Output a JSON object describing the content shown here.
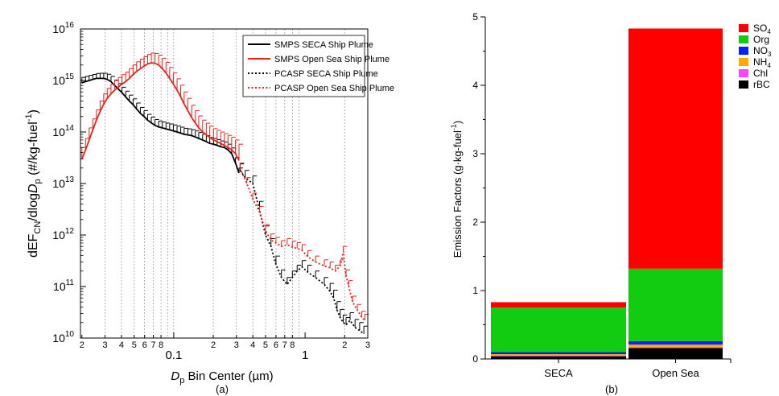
{
  "chart_data": [
    {
      "type": "line",
      "panel_label": "(a)",
      "xlabel_var": "D",
      "xlabel_sub": "p",
      "xlabel_rest": " Bin Center (µm)",
      "ylabel_pre": "dEF",
      "ylabel_sub1": "CN",
      "ylabel_mid": "/dlog",
      "ylabel_var": "D",
      "ylabel_sub2": "p",
      "ylabel_post": " (#/kg-fuel",
      "ylabel_sup": "-1",
      "ylabel_close": ")",
      "xscale": "log",
      "yscale": "log",
      "xlim": [
        0.0195,
        3.0
      ],
      "ylim": [
        10000000000.0,
        1e+16
      ],
      "x_ticks": [
        {
          "v": 0.02,
          "label": "2"
        },
        {
          "v": 0.03,
          "label": "3"
        },
        {
          "v": 0.04,
          "label": "4"
        },
        {
          "v": 0.05,
          "label": "5"
        },
        {
          "v": 0.06,
          "label": "6"
        },
        {
          "v": 0.07,
          "label": "7"
        },
        {
          "v": 0.08,
          "label": "8"
        },
        {
          "v": 0.1,
          "label": "0.1"
        },
        {
          "v": 0.2,
          "label": "2"
        },
        {
          "v": 0.3,
          "label": "3"
        },
        {
          "v": 0.4,
          "label": "4"
        },
        {
          "v": 0.5,
          "label": "5"
        },
        {
          "v": 0.6,
          "label": "6"
        },
        {
          "v": 0.7,
          "label": "7"
        },
        {
          "v": 0.8,
          "label": "8"
        },
        {
          "v": 1.0,
          "label": "1"
        },
        {
          "v": 2.0,
          "label": "2"
        },
        {
          "v": 3.0,
          "label": "3"
        }
      ],
      "y_ticks": [
        {
          "exp": 10,
          "base": "10",
          "sup": "10"
        },
        {
          "exp": 11,
          "base": "10",
          "sup": "11"
        },
        {
          "exp": 12,
          "base": "10",
          "sup": "12"
        },
        {
          "exp": 13,
          "base": "10",
          "sup": "13"
        },
        {
          "exp": 14,
          "base": "10",
          "sup": "14"
        },
        {
          "exp": 15,
          "base": "10",
          "sup": "15"
        },
        {
          "exp": 16,
          "base": "10",
          "sup": "16"
        }
      ],
      "gridlines_x": [
        0.03,
        0.04,
        0.05,
        0.06,
        0.07,
        0.08,
        0.09,
        0.1,
        0.2,
        0.3,
        0.4,
        0.5,
        0.6,
        0.7,
        0.8,
        0.9,
        2.0
      ],
      "legend_placement": "top-right",
      "series": [
        {
          "name": "SMPS SECA Ship Plume",
          "color": "#000000",
          "dash": "solid",
          "x": [
            0.02,
            0.0213,
            0.0227,
            0.0242,
            0.0258,
            0.0275,
            0.0293,
            0.0312,
            0.0333,
            0.0355,
            0.0379,
            0.0404,
            0.0431,
            0.0459,
            0.049,
            0.0522,
            0.0557,
            0.0594,
            0.0633,
            0.0675,
            0.072,
            0.0768,
            0.0819,
            0.0873,
            0.0931,
            0.0993,
            0.106,
            0.113,
            0.12,
            0.128,
            0.137,
            0.146,
            0.155,
            0.166,
            0.177,
            0.188,
            0.201,
            0.214,
            0.228,
            0.243,
            0.259,
            0.276,
            0.295,
            0.314
          ],
          "y": [
            900000000000000.0,
            950000000000000.0,
            1000000000000000.0,
            1050000000000000.0,
            1100000000000000.0,
            1100000000000000.0,
            1100000000000000.0,
            1050000000000000.0,
            950000000000000.0,
            800000000000000.0,
            680000000000000.0,
            580000000000000.0,
            480000000000000.0,
            400000000000000.0,
            340000000000000.0,
            280000000000000.0,
            230000000000000.0,
            200000000000000.0,
            170000000000000.0,
            150000000000000.0,
            135000000000000.0,
            125000000000000.0,
            120000000000000.0,
            115000000000000.0,
            110000000000000.0,
            105000000000000.0,
            100000000000000.0,
            95000000000000.0,
            90000000000000.0,
            88000000000000.0,
            85000000000000.0,
            80000000000000.0,
            75000000000000.0,
            70000000000000.0,
            65000000000000.0,
            60000000000000.0,
            58000000000000.0,
            55000000000000.0,
            52000000000000.0,
            50000000000000.0,
            45000000000000.0,
            38000000000000.0,
            25000000000000.0,
            16000000000000.0
          ],
          "err": [
            250000000000000.0,
            250000000000000.0,
            260000000000000.0,
            260000000000000.0,
            270000000000000.0,
            280000000000000.0,
            280000000000000.0,
            270000000000000.0,
            250000000000000.0,
            220000000000000.0,
            190000000000000.0,
            160000000000000.0,
            140000000000000.0,
            120000000000000.0,
            100000000000000.0,
            85000000000000.0,
            70000000000000.0,
            60000000000000.0,
            50000000000000.0,
            45000000000000.0,
            40000000000000.0,
            38000000000000.0,
            36000000000000.0,
            34000000000000.0,
            33000000000000.0,
            32000000000000.0,
            30000000000000.0,
            29000000000000.0,
            28000000000000.0,
            27000000000000.0,
            26000000000000.0,
            25000000000000.0,
            23000000000000.0,
            21000000000000.0,
            20000000000000.0,
            18000000000000.0,
            17000000000000.0,
            16000000000000.0,
            15000000000000.0,
            14000000000000.0,
            13000000000000.0,
            11000000000000.0,
            7000000000000.0,
            4000000000000.0
          ]
        },
        {
          "name": "SMPS Open Sea Ship Plume",
          "color": "#e8221b",
          "dash": "solid",
          "x": [
            0.02,
            0.0213,
            0.0227,
            0.0242,
            0.0258,
            0.0275,
            0.0293,
            0.0312,
            0.0333,
            0.0355,
            0.0379,
            0.0404,
            0.0431,
            0.0459,
            0.049,
            0.0522,
            0.0557,
            0.0594,
            0.0633,
            0.0675,
            0.072,
            0.0768,
            0.0819,
            0.0873,
            0.0931,
            0.0993,
            0.106,
            0.113,
            0.12,
            0.128,
            0.137,
            0.146,
            0.155,
            0.166,
            0.177,
            0.188,
            0.201,
            0.214,
            0.228,
            0.243,
            0.259,
            0.276,
            0.295,
            0.314
          ],
          "y": [
            30000000000000.0,
            45000000000000.0,
            70000000000000.0,
            110000000000000.0,
            170000000000000.0,
            250000000000000.0,
            350000000000000.0,
            450000000000000.0,
            550000000000000.0,
            650000000000000.0,
            750000000000000.0,
            850000000000000.0,
            950000000000000.0,
            1100000000000000.0,
            1300000000000000.0,
            1500000000000000.0,
            1700000000000000.0,
            1900000000000000.0,
            2100000000000000.0,
            2200000000000000.0,
            2150000000000000.0,
            2000000000000000.0,
            1700000000000000.0,
            1400000000000000.0,
            1100000000000000.0,
            850000000000000.0,
            650000000000000.0,
            480000000000000.0,
            350000000000000.0,
            260000000000000.0,
            190000000000000.0,
            150000000000000.0,
            120000000000000.0,
            100000000000000.0,
            88000000000000.0,
            78000000000000.0,
            70000000000000.0,
            65000000000000.0,
            60000000000000.0,
            55000000000000.0,
            50000000000000.0,
            45000000000000.0,
            38000000000000.0,
            28000000000000.0
          ],
          "err": [
            20000000000000.0,
            30000000000000.0,
            50000000000000.0,
            70000000000000.0,
            100000000000000.0,
            150000000000000.0,
            200000000000000.0,
            250000000000000.0,
            300000000000000.0,
            350000000000000.0,
            400000000000000.0,
            450000000000000.0,
            500000000000000.0,
            600000000000000.0,
            700000000000000.0,
            800000000000000.0,
            900000000000000.0,
            1000000000000000.0,
            1100000000000000.0,
            1200000000000000.0,
            1200000000000000.0,
            1100000000000000.0,
            1000000000000000.0,
            850000000000000.0,
            700000000000000.0,
            550000000000000.0,
            430000000000000.0,
            330000000000000.0,
            250000000000000.0,
            190000000000000.0,
            140000000000000.0,
            110000000000000.0,
            85000000000000.0,
            70000000000000.0,
            60000000000000.0,
            52000000000000.0,
            46000000000000.0,
            43000000000000.0,
            40000000000000.0,
            38000000000000.0,
            36000000000000.0,
            34000000000000.0,
            32000000000000.0,
            30000000000000.0
          ]
        },
        {
          "name": "PCASP SECA Ship Plume",
          "color": "#000000",
          "dash": "dotted",
          "x": [
            0.32,
            0.35,
            0.4,
            0.45,
            0.5,
            0.55,
            0.6,
            0.66,
            0.73,
            0.8,
            0.87,
            0.95,
            1.05,
            1.2,
            1.4,
            1.55,
            1.65,
            1.75,
            1.85,
            1.95,
            2.05,
            2.2,
            2.4,
            2.6,
            2.8
          ],
          "y": [
            18000000000000.0,
            13000000000000.0,
            10000000000000.0,
            3000000000000.0,
            1000000000000.0,
            600000000000.0,
            270000000000.0,
            150000000000.0,
            110000000000.0,
            150000000000.0,
            200000000000.0,
            240000000000.0,
            190000000000.0,
            150000000000.0,
            110000000000.0,
            80000000000.0,
            60000000000.0,
            35000000000.0,
            25000000000.0,
            20000000000.0,
            18000000000.0,
            22000000000.0,
            16000000000.0,
            14000000000.0,
            12000000000.0
          ],
          "err": [
            6000000000000.0,
            5000000000000.0,
            4000000000000.0,
            1500000000000.0,
            500000000000.0,
            250000000000.0,
            120000000000.0,
            60000000000.0,
            40000000000.0,
            50000000000.0,
            60000000000.0,
            80000000000.0,
            70000000000.0,
            50000000000.0,
            40000000000.0,
            35000000000.0,
            25000000000.0,
            16000000000.0,
            11000000000.0,
            8000000000.0,
            7000000000.0,
            9000000000.0,
            7000000000.0,
            6000000000.0,
            5000000000.0
          ]
        },
        {
          "name": "PCASP Open Sea Ship Plume",
          "color": "#e8221b",
          "dash": "dotted",
          "x": [
            0.32,
            0.36,
            0.4,
            0.45,
            0.5,
            0.55,
            0.6,
            0.66,
            0.73,
            0.8,
            0.87,
            0.95,
            1.05,
            1.2,
            1.4,
            1.55,
            1.7,
            1.85,
            1.95,
            2.05,
            2.15,
            2.3,
            2.5,
            2.7,
            2.85
          ],
          "y": [
            20000000000000.0,
            10000000000000.0,
            5000000000000.0,
            2800000000000.0,
            1200000000000.0,
            800000000000.0,
            700000000000.0,
            600000000000.0,
            650000000000.0,
            580000000000.0,
            550000000000.0,
            500000000000.0,
            380000000000.0,
            300000000000.0,
            250000000000.0,
            230000000000.0,
            200000000000.0,
            250000000000.0,
            450000000000.0,
            160000000000.0,
            100000000000.0,
            50000000000.0,
            35000000000.0,
            25000000000.0,
            22000000000.0
          ],
          "err": [
            5000000000000.0,
            3000000000000.0,
            1500000000000.0,
            800000000000.0,
            400000000000.0,
            250000000000.0,
            200000000000.0,
            180000000000.0,
            200000000000.0,
            180000000000.0,
            160000000000.0,
            150000000000.0,
            120000000000.0,
            90000000000.0,
            80000000000.0,
            70000000000.0,
            60000000000.0,
            80000000000.0,
            150000000000.0,
            50000000000.0,
            30000000000.0,
            15000000000.0,
            10000000000.0,
            8000000000.0,
            7000000000.0
          ]
        }
      ]
    },
    {
      "type": "bar",
      "stacked": true,
      "panel_label": "(b)",
      "categories": [
        "SECA",
        "Open Sea"
      ],
      "ylabel_pre": "Emission Factors (g·kg-fuel",
      "ylabel_sup": "-1",
      "ylabel_close": ")",
      "ylim": [
        0,
        5
      ],
      "y_ticks": [
        0,
        1,
        2,
        3,
        4,
        5
      ],
      "legend_placement": "top-right",
      "series": [
        {
          "name": "rBC",
          "sub": "",
          "color": "#000000",
          "values": [
            0.04,
            0.16
          ]
        },
        {
          "name": "Chl",
          "sub": "",
          "color": "#ff44ff",
          "values": [
            0.01,
            0.01
          ]
        },
        {
          "name": "NH",
          "sub": "4",
          "color": "#ffaa00",
          "values": [
            0.02,
            0.04
          ]
        },
        {
          "name": "NO",
          "sub": "3",
          "color": "#0022ff",
          "values": [
            0.03,
            0.05
          ]
        },
        {
          "name": "Org",
          "sub": "",
          "color": "#11cc11",
          "values": [
            0.65,
            1.06
          ]
        },
        {
          "name": "SO",
          "sub": "4",
          "color": "#ff0000",
          "values": [
            0.08,
            3.51
          ]
        }
      ]
    }
  ]
}
